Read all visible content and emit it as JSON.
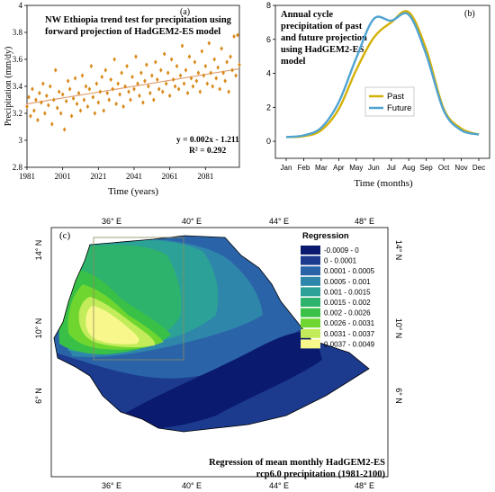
{
  "chart_data": [
    {
      "panel": "(a)",
      "type": "scatter",
      "title": "NW Ethiopia trend test for precipitation using forward projection of HadGEM2-ES model",
      "title_lines": [
        "NW Ethiopia trend test for precipitation using",
        "forward projection of HadGEM2-ES model"
      ],
      "xlabel": "Time (years)",
      "ylabel": "Precipitation (mm/dy)",
      "xlim": [
        1981,
        2100
      ],
      "ylim": [
        2.8,
        4.0
      ],
      "xticks": [
        1981,
        2001,
        2021,
        2041,
        2061,
        2081
      ],
      "yticks": [
        2.8,
        3,
        3.2,
        3.4,
        3.6,
        3.8,
        4
      ],
      "ytick_labels": [
        "2.8",
        "3",
        "3.2",
        "3.4",
        "3.6",
        "3.8",
        "4"
      ],
      "equation": "y = 0.002x - 1.211",
      "r_squared": "R² = 0.292",
      "point_color": "#d98a1b",
      "trend_color": "#e0a070",
      "trendline": {
        "x": [
          1981,
          2100
        ],
        "y": [
          3.27,
          3.53
        ]
      },
      "series": [
        {
          "x": [
            1981,
            1982,
            1983,
            1984,
            1985,
            1986,
            1987,
            1988,
            1989,
            1990,
            1991,
            1992,
            1993,
            1994,
            1995,
            1996,
            1997,
            1998,
            1999,
            2000,
            2001,
            2002,
            2003,
            2004,
            2005,
            2006,
            2007,
            2008,
            2009,
            2010,
            2011,
            2012,
            2013,
            2014,
            2015,
            2016,
            2017,
            2018,
            2019,
            2020,
            2021,
            2022,
            2023,
            2024,
            2025,
            2026,
            2027,
            2028,
            2029,
            2030,
            2031,
            2032,
            2033,
            2034,
            2035,
            2036,
            2037,
            2038,
            2039,
            2040,
            2041,
            2042,
            2043,
            2044,
            2045,
            2046,
            2047,
            2048,
            2049,
            2050,
            2051,
            2052,
            2053,
            2054,
            2055,
            2056,
            2057,
            2058,
            2059,
            2060,
            2061,
            2062,
            2063,
            2064,
            2065,
            2066,
            2067,
            2068,
            2069,
            2070,
            2071,
            2072,
            2073,
            2074,
            2075,
            2076,
            2077,
            2078,
            2079,
            2080,
            2081,
            2082,
            2083,
            2084,
            2085,
            2086,
            2087,
            2088,
            2089,
            2090,
            2091,
            2092,
            2093,
            2094,
            2095,
            2096,
            2097,
            2098,
            2099,
            2100
          ],
          "y": [
            3.25,
            3.32,
            3.18,
            3.38,
            3.22,
            3.3,
            3.15,
            3.35,
            3.28,
            3.42,
            3.2,
            3.33,
            3.26,
            3.4,
            3.12,
            3.3,
            3.52,
            3.24,
            3.36,
            3.2,
            3.34,
            3.08,
            3.29,
            3.44,
            3.38,
            3.18,
            3.31,
            3.46,
            3.27,
            3.35,
            3.22,
            3.48,
            3.3,
            3.4,
            3.25,
            3.38,
            3.55,
            3.32,
            3.2,
            3.42,
            3.28,
            3.36,
            3.47,
            3.22,
            3.52,
            3.35,
            3.3,
            3.45,
            3.38,
            3.6,
            3.27,
            3.42,
            3.34,
            3.5,
            3.25,
            3.4,
            3.55,
            3.36,
            3.3,
            3.47,
            3.38,
            3.62,
            3.42,
            3.33,
            3.5,
            3.28,
            3.44,
            3.56,
            3.4,
            3.35,
            3.48,
            3.3,
            3.58,
            3.45,
            3.38,
            3.52,
            3.36,
            3.64,
            3.42,
            3.5,
            3.33,
            3.6,
            3.45,
            3.4,
            3.55,
            3.38,
            3.48,
            3.7,
            3.42,
            3.52,
            3.35,
            3.62,
            3.46,
            3.4,
            3.58,
            3.44,
            3.5,
            3.36,
            3.66,
            3.48,
            3.55,
            3.42,
            3.72,
            3.5,
            3.4,
            3.6,
            3.46,
            3.54,
            3.38,
            3.68,
            3.5,
            3.44,
            3.58,
            3.36,
            3.62,
            3.52,
            3.77,
            3.48,
            3.78,
            3.56
          ]
        }
      ]
    },
    {
      "panel": "(b)",
      "type": "line",
      "title": "Annual cycle precipitation of past and future projection using HadGEM2-ES model",
      "title_lines": [
        "Annual cycle",
        "precipitation of past",
        "and future projection",
        "using HadGEM2-ES",
        "model"
      ],
      "xlabel": "Time (months)",
      "ylabel": "",
      "categories": [
        "Jan",
        "Feb",
        "Mar",
        "Apr",
        "May",
        "Jun",
        "Jul",
        "Aug",
        "Sep",
        "Oct",
        "Nov",
        "Dec"
      ],
      "ylim": [
        -1,
        8
      ],
      "yticks": [
        0,
        2,
        4,
        6,
        8
      ],
      "legend_position": "center-right",
      "series": [
        {
          "name": "Past",
          "color": "#d4b106",
          "values": [
            0.25,
            0.3,
            0.65,
            1.9,
            4.2,
            6.1,
            7.0,
            7.6,
            5.4,
            1.9,
            0.75,
            0.4
          ]
        },
        {
          "name": "Future",
          "color": "#4fa3d1",
          "values": [
            0.25,
            0.35,
            0.8,
            2.3,
            4.9,
            7.2,
            7.1,
            7.45,
            5.1,
            1.8,
            0.65,
            0.4
          ]
        }
      ]
    },
    {
      "panel": "(c)",
      "type": "heatmap",
      "title": "Regression of mean monthly HadGEM2-ES rcp6.0 precipitation (1981-2100)",
      "title_lines": [
        "Regression of mean monthly HadGEM2-ES",
        "rcp6.0 precipitation (1981-2100)"
      ],
      "x_ticks": [
        "36° E",
        "40° E",
        "44° E",
        "48° E"
      ],
      "y_ticks": [
        "6° N",
        "10° N",
        "14° N"
      ],
      "legend": {
        "title": "Regression",
        "position": "top-right",
        "classes": [
          {
            "label": "-0.0009 - 0",
            "color": "#0a1a6e"
          },
          {
            "label": "0 - 0.0001",
            "color": "#1c3b8e"
          },
          {
            "label": "0.0001 - 0.0005",
            "color": "#2a63a8"
          },
          {
            "label": "0.0005 - 0.001",
            "color": "#2f86ab"
          },
          {
            "label": "0.001 - 0.0015",
            "color": "#2ba197"
          },
          {
            "label": "0.0015 - 0.002",
            "color": "#2eb36c"
          },
          {
            "label": "0.002 - 0.0026",
            "color": "#39c047"
          },
          {
            "label": "0.0026 - 0.0031",
            "color": "#6fd630"
          },
          {
            "label": "0.0031 - 0.0037",
            "color": "#c2ec5a"
          },
          {
            "label": "0.0037 - 0.0049",
            "color": "#f7f78c"
          }
        ]
      }
    }
  ]
}
